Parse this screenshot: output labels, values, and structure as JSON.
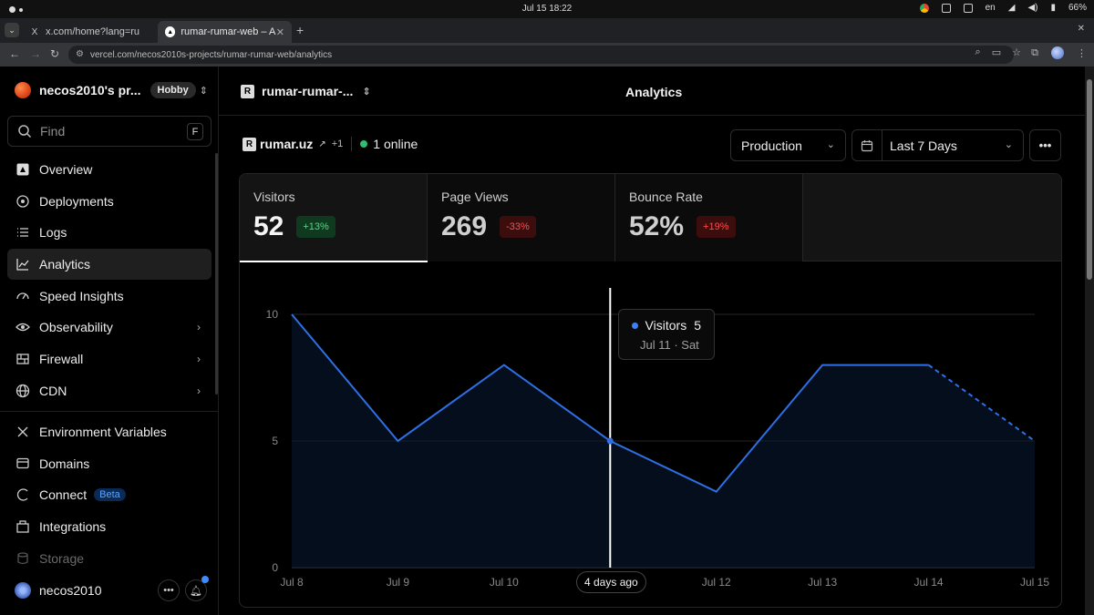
{
  "os": {
    "clock": "Jul 15  18:22",
    "lang": "en",
    "battery": "66%"
  },
  "browser": {
    "tabs": [
      {
        "title": "x.com/home?lang=ru",
        "favicon": "X"
      },
      {
        "title": "rumar-rumar-web – Anal",
        "favicon": "▲"
      }
    ],
    "url": "vercel.com/necos2010s-projects/rumar-rumar-web/analytics"
  },
  "sidebar": {
    "team_name": "necos2010's pr...",
    "plan": "Hobby",
    "find_placeholder": "Find",
    "find_shortcut": "F",
    "items": [
      {
        "label": "Overview",
        "icon": "vercel-project-icon"
      },
      {
        "label": "Deployments",
        "icon": "deployments-icon"
      },
      {
        "label": "Logs",
        "icon": "logs-icon"
      },
      {
        "label": "Analytics",
        "icon": "analytics-icon"
      },
      {
        "label": "Speed Insights",
        "icon": "speed-insights-icon"
      },
      {
        "label": "Observability",
        "icon": "observability-icon"
      },
      {
        "label": "Firewall",
        "icon": "firewall-icon"
      },
      {
        "label": "CDN",
        "icon": "globe-icon"
      },
      {
        "label": "Environment Variables",
        "icon": "env-vars-icon"
      },
      {
        "label": "Domains",
        "icon": "domains-icon"
      },
      {
        "label": "Connect",
        "icon": "connect-icon",
        "badge": "Beta"
      },
      {
        "label": "Integrations",
        "icon": "integrations-icon"
      },
      {
        "label": "Storage",
        "icon": "storage-icon"
      }
    ],
    "user": "necos2010"
  },
  "header": {
    "project": "rumar-rumar-...",
    "title": "Analytics"
  },
  "site": {
    "domain": "rumar.uz",
    "more": "+1",
    "online": "1 online"
  },
  "filters": {
    "environment": "Production",
    "range": "Last 7 Days"
  },
  "metrics": [
    {
      "label": "Visitors",
      "value": "52",
      "delta": "+13%",
      "trend": "up"
    },
    {
      "label": "Page Views",
      "value": "269",
      "delta": "-33%",
      "trend": "down"
    },
    {
      "label": "Bounce Rate",
      "value": "52%",
      "delta": "+19%",
      "trend": "down"
    }
  ],
  "tooltip": {
    "series": "Visitors",
    "value": "5",
    "date": "Jul 11 · Sat"
  },
  "hover_label": "4 days ago",
  "colors": {
    "line": "#2f6fe4",
    "positive": "#4ade80",
    "negative": "#ff4d4d",
    "online": "#2fbf71"
  },
  "chart_data": {
    "type": "line",
    "series": [
      {
        "name": "Visitors",
        "values": [
          10,
          5,
          8,
          5,
          3,
          8,
          8,
          5
        ]
      }
    ],
    "categories": [
      "Jul 8",
      "Jul 9",
      "Jul 10",
      "Jul 11",
      "Jul 12",
      "Jul 13",
      "Jul 14",
      "Jul 15"
    ],
    "x_tick_labels": [
      "Jul 8",
      "Jul 9",
      "Jul 10",
      "",
      "Jul 12",
      "Jul 13",
      "Jul 14",
      "Jul 15"
    ],
    "y_ticks": [
      0,
      5,
      10
    ],
    "ylim": [
      0,
      10
    ],
    "partial_last_segment": true,
    "highlighted_index": 3,
    "grid": true
  }
}
